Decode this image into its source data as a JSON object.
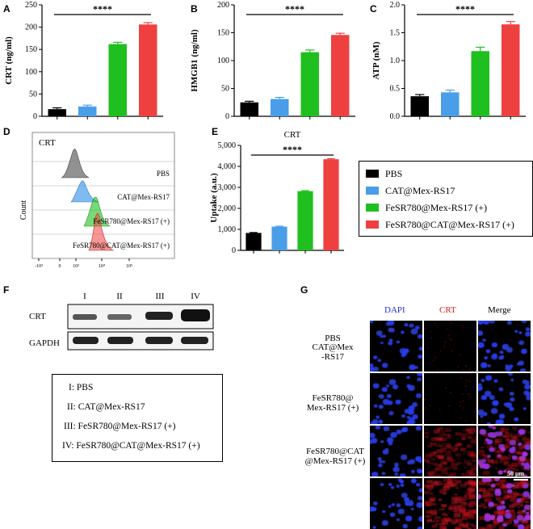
{
  "panels": {
    "A": "A",
    "B": "B",
    "C": "C",
    "D": "D",
    "E": "E",
    "F": "F",
    "G": "G"
  },
  "colors": {
    "PBS": "#000000",
    "CAT": "#4a9ee8",
    "FeSR780_Mex": "#1fbf1f",
    "FeSR780_CAT": "#ef4040"
  },
  "significance": "****",
  "chart_data": [
    {
      "id": "A",
      "type": "bar",
      "ylabel": "CRT (ng/ml)",
      "ylim": [
        0,
        250
      ],
      "yticks": [
        0,
        50,
        100,
        150,
        200,
        250
      ],
      "categories": [
        "PBS",
        "CAT@Mex-RS17",
        "FeSR780@Mex-RS17 (+)",
        "FeSR780@CAT@Mex-RS17 (+)"
      ],
      "values": [
        16,
        22,
        162,
        206
      ],
      "errors": [
        3,
        3,
        4,
        4
      ]
    },
    {
      "id": "B",
      "type": "bar",
      "ylabel": "HMGB1 (ng/ml)",
      "ylim": [
        0,
        200
      ],
      "yticks": [
        0,
        50,
        100,
        150,
        200
      ],
      "categories": [
        "PBS",
        "CAT@Mex-RS17",
        "FeSR780@Mex-RS17 (+)",
        "FeSR780@CAT@Mex-RS17 (+)"
      ],
      "values": [
        25,
        31,
        115,
        146
      ],
      "errors": [
        2,
        3,
        4,
        3
      ]
    },
    {
      "id": "C",
      "type": "bar",
      "ylabel": "ATP (nM)",
      "ylim": [
        0,
        2.0
      ],
      "yticks": [
        "0.0",
        "0.5",
        "1.0",
        "1.5",
        "2.0"
      ],
      "categories": [
        "PBS",
        "CAT@Mex-RS17",
        "FeSR780@Mex-RS17 (+)",
        "FeSR780@CAT@Mex-RS17 (+)"
      ],
      "values": [
        0.36,
        0.43,
        1.17,
        1.65
      ],
      "errors": [
        0.03,
        0.04,
        0.07,
        0.05
      ]
    },
    {
      "id": "E",
      "type": "bar",
      "title": "CRT",
      "ylabel": "Uptake (a.u.)",
      "ylim": [
        0,
        5000
      ],
      "yticks": [
        "0",
        "1,000",
        "2,000",
        "3,000",
        "4,000",
        "5,000"
      ],
      "categories": [
        "PBS",
        "CAT@Mex-RS17",
        "FeSR780@Mex-RS17 (+)",
        "FeSR780@CAT@Mex-RS17 (+)"
      ],
      "values": [
        830,
        1130,
        2820,
        4340
      ],
      "errors": [
        20,
        20,
        25,
        25
      ]
    }
  ],
  "legend": [
    "PBS",
    "CAT@Mex-RS17",
    "FeSR780@Mex-RS17 (+)",
    "FeSR780@CAT@Mex-RS17 (+)"
  ],
  "flow": {
    "title": "CRT",
    "ylabel": "Count",
    "rows": [
      "PBS",
      "CAT@Mex-RS17",
      "FeSR780@Mex-RS17 (+)",
      "FeSR780@CAT@Mex-RS17 (+)"
    ],
    "xticks": [
      "-10³",
      "0",
      "10³",
      "10⁴",
      "10⁵"
    ]
  },
  "blot": {
    "lanes": [
      "I",
      "II",
      "III",
      "IV"
    ],
    "rows": [
      "CRT",
      "GAPDH"
    ]
  },
  "key": [
    "I: PBS",
    "II: CAT@Mex-RS17",
    "III: FeSR780@Mex-RS17 (+)",
    "IV: FeSR780@CAT@Mex-RS17 (+)"
  ],
  "micro": {
    "cols": [
      "DAPI",
      "CRT",
      "Merge"
    ],
    "rows": [
      "PBS",
      "CAT@Mex\n-RS17",
      "FeSR780@\nMex-RS17 (+)",
      "FeSR780@CAT\n@Mex-RS17 (+)"
    ],
    "scale": "50 μm"
  }
}
